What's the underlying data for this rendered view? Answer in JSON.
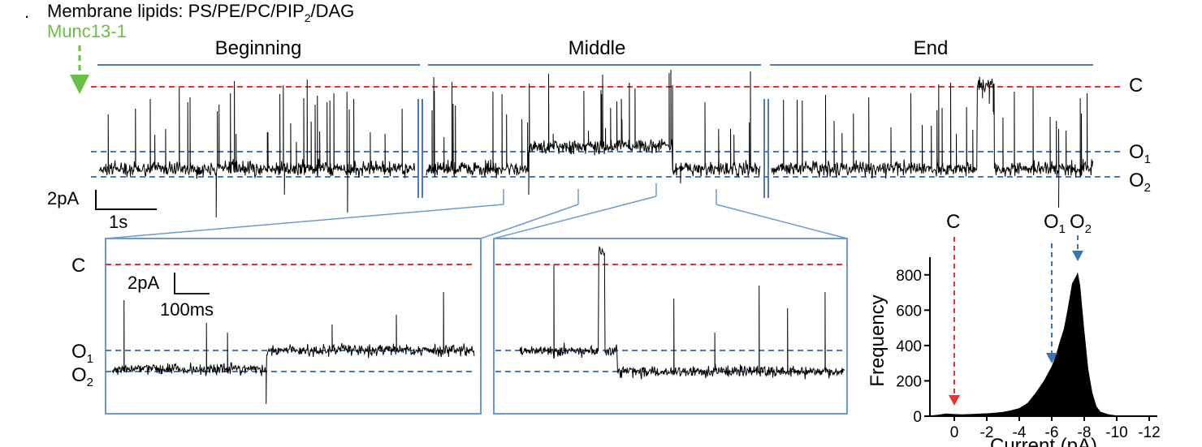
{
  "header": {
    "bullet": ".",
    "title_prefix": "Membrane lipids: PS/PE/PC/PIP",
    "title_sub": "2",
    "title_suffix": "/DAG",
    "protein": "Munc13-1"
  },
  "colors": {
    "trace": "#000000",
    "closed_line": "#e8332f",
    "open_line": "#4a7ab8",
    "section_bar": "#4a7ab8",
    "zoom_box": "#6a9bd0",
    "munc_green": "#6cbf45",
    "arrow_red": "#e8332f",
    "arrow_blue": "#3a72b8"
  },
  "top_trace": {
    "sections": [
      "Beginning",
      "Middle",
      "End"
    ],
    "levels": {
      "closed": "C",
      "open1": "O",
      "open1_sub": "1",
      "open2": "O",
      "open2_sub": "2"
    },
    "scalebar": {
      "current": "2pA",
      "time": "1s"
    }
  },
  "zooms": {
    "levels": {
      "closed": "C",
      "open1": "O",
      "open1_sub": "1",
      "open2": "O",
      "open2_sub": "2"
    },
    "scalebar": {
      "current": "2pA",
      "time": "100ms"
    }
  },
  "chart_data": {
    "type": "area",
    "xlabel": "Current (pA)",
    "ylabel": "Frequency",
    "xticks": [
      "0",
      "-2",
      "-4",
      "-6",
      "-8",
      "-10",
      "-12"
    ],
    "yticks": [
      "0",
      "200",
      "400",
      "600",
      "800"
    ],
    "xlim": [
      1.5,
      -12.5
    ],
    "ylim": [
      0,
      900
    ],
    "x": [
      1.5,
      1,
      0.5,
      0,
      -0.5,
      -1,
      -1.5,
      -2,
      -2.5,
      -3,
      -3.5,
      -4,
      -4.5,
      -5,
      -5.5,
      -6,
      -6.25,
      -6.5,
      -6.75,
      -7,
      -7.25,
      -7.5,
      -7.6,
      -7.75,
      -8,
      -8.25,
      -8.5,
      -8.75,
      -9,
      -9.5,
      -10,
      -10.5,
      -11,
      -12
    ],
    "y": [
      3,
      8,
      14,
      12,
      10,
      12,
      14,
      16,
      20,
      25,
      32,
      45,
      75,
      130,
      205,
      290,
      345,
      420,
      500,
      610,
      740,
      810,
      800,
      720,
      480,
      270,
      130,
      55,
      25,
      10,
      4,
      2,
      1,
      0
    ],
    "peak_labels": [
      {
        "label": "C",
        "sub": "",
        "x": 0,
        "color": "red"
      },
      {
        "label": "O",
        "sub": "1",
        "x": -6.0,
        "color": "blue"
      },
      {
        "label": "O",
        "sub": "2",
        "x": -7.6,
        "color": "blue"
      }
    ]
  }
}
